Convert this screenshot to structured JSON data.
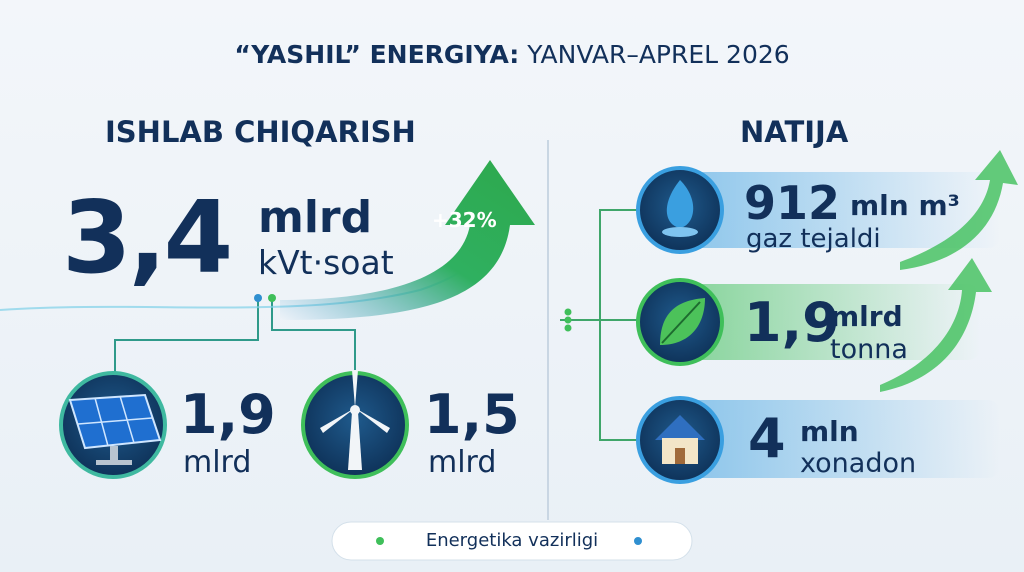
{
  "title": {
    "bold": "“YASHIL” ENERGIYA:",
    "rest": "YANVAR–APREL 2026"
  },
  "production": {
    "heading": "ISHLAB CHIQARISH",
    "value": "3,4",
    "unit": "mlrd",
    "unit_detail": "kVt·soat",
    "growth": "+32%",
    "sources": [
      {
        "value": "1,9",
        "unit": "mlrd"
      },
      {
        "value": "1,5",
        "unit": "mlrd"
      }
    ]
  },
  "result": {
    "heading": "NATIJA",
    "items": [
      {
        "value": "912",
        "unit": "mln m³",
        "label": "gaz tejaldi"
      },
      {
        "value": "1,9",
        "unit": "mlrd",
        "label": "tonna"
      },
      {
        "value": "4",
        "unit": "mln",
        "label": "xonadon"
      }
    ]
  },
  "footer": "Energetika vazirligi"
}
